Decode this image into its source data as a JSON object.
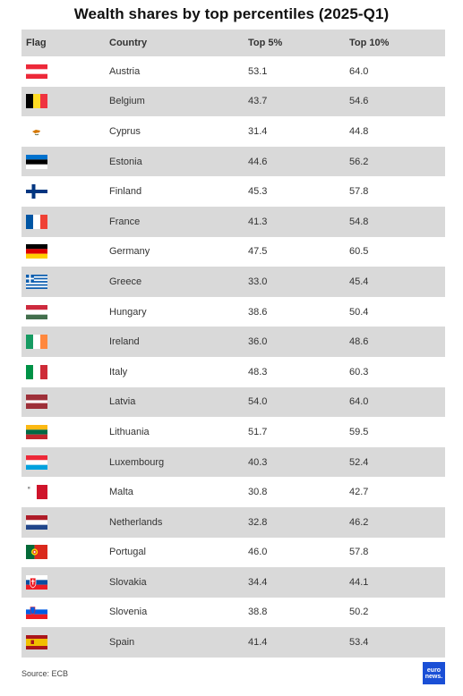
{
  "title": "Wealth shares by top percentiles (2025-Q1)",
  "source": "Source: ECB",
  "logo": {
    "line1": "euro",
    "line2": "news."
  },
  "chart_data": {
    "type": "table",
    "columns": [
      "Flag",
      "Country",
      "Top 5%",
      "Top 10%"
    ],
    "rows": [
      {
        "country": "Austria",
        "flag": "austria",
        "top5": "53.1",
        "top10": "64.0"
      },
      {
        "country": "Belgium",
        "flag": "belgium",
        "top5": "43.7",
        "top10": "54.6"
      },
      {
        "country": "Cyprus",
        "flag": "cyprus",
        "top5": "31.4",
        "top10": "44.8"
      },
      {
        "country": "Estonia",
        "flag": "estonia",
        "top5": "44.6",
        "top10": "56.2"
      },
      {
        "country": "Finland",
        "flag": "finland",
        "top5": "45.3",
        "top10": "57.8"
      },
      {
        "country": "France",
        "flag": "france",
        "top5": "41.3",
        "top10": "54.8"
      },
      {
        "country": "Germany",
        "flag": "germany",
        "top5": "47.5",
        "top10": "60.5"
      },
      {
        "country": "Greece",
        "flag": "greece",
        "top5": "33.0",
        "top10": "45.4"
      },
      {
        "country": "Hungary",
        "flag": "hungary",
        "top5": "38.6",
        "top10": "50.4"
      },
      {
        "country": "Ireland",
        "flag": "ireland",
        "top5": "36.0",
        "top10": "48.6"
      },
      {
        "country": "Italy",
        "flag": "italy",
        "top5": "48.3",
        "top10": "60.3"
      },
      {
        "country": "Latvia",
        "flag": "latvia",
        "top5": "54.0",
        "top10": "64.0"
      },
      {
        "country": "Lithuania",
        "flag": "lithuania",
        "top5": "51.7",
        "top10": "59.5"
      },
      {
        "country": "Luxembourg",
        "flag": "luxembourg",
        "top5": "40.3",
        "top10": "52.4"
      },
      {
        "country": "Malta",
        "flag": "malta",
        "top5": "30.8",
        "top10": "42.7"
      },
      {
        "country": "Netherlands",
        "flag": "netherlands",
        "top5": "32.8",
        "top10": "46.2"
      },
      {
        "country": "Portugal",
        "flag": "portugal",
        "top5": "46.0",
        "top10": "57.8"
      },
      {
        "country": "Slovakia",
        "flag": "slovakia",
        "top5": "34.4",
        "top10": "44.1"
      },
      {
        "country": "Slovenia",
        "flag": "slovenia",
        "top5": "38.8",
        "top10": "50.2"
      },
      {
        "country": "Spain",
        "flag": "spain",
        "top5": "41.4",
        "top10": "53.4"
      }
    ]
  }
}
